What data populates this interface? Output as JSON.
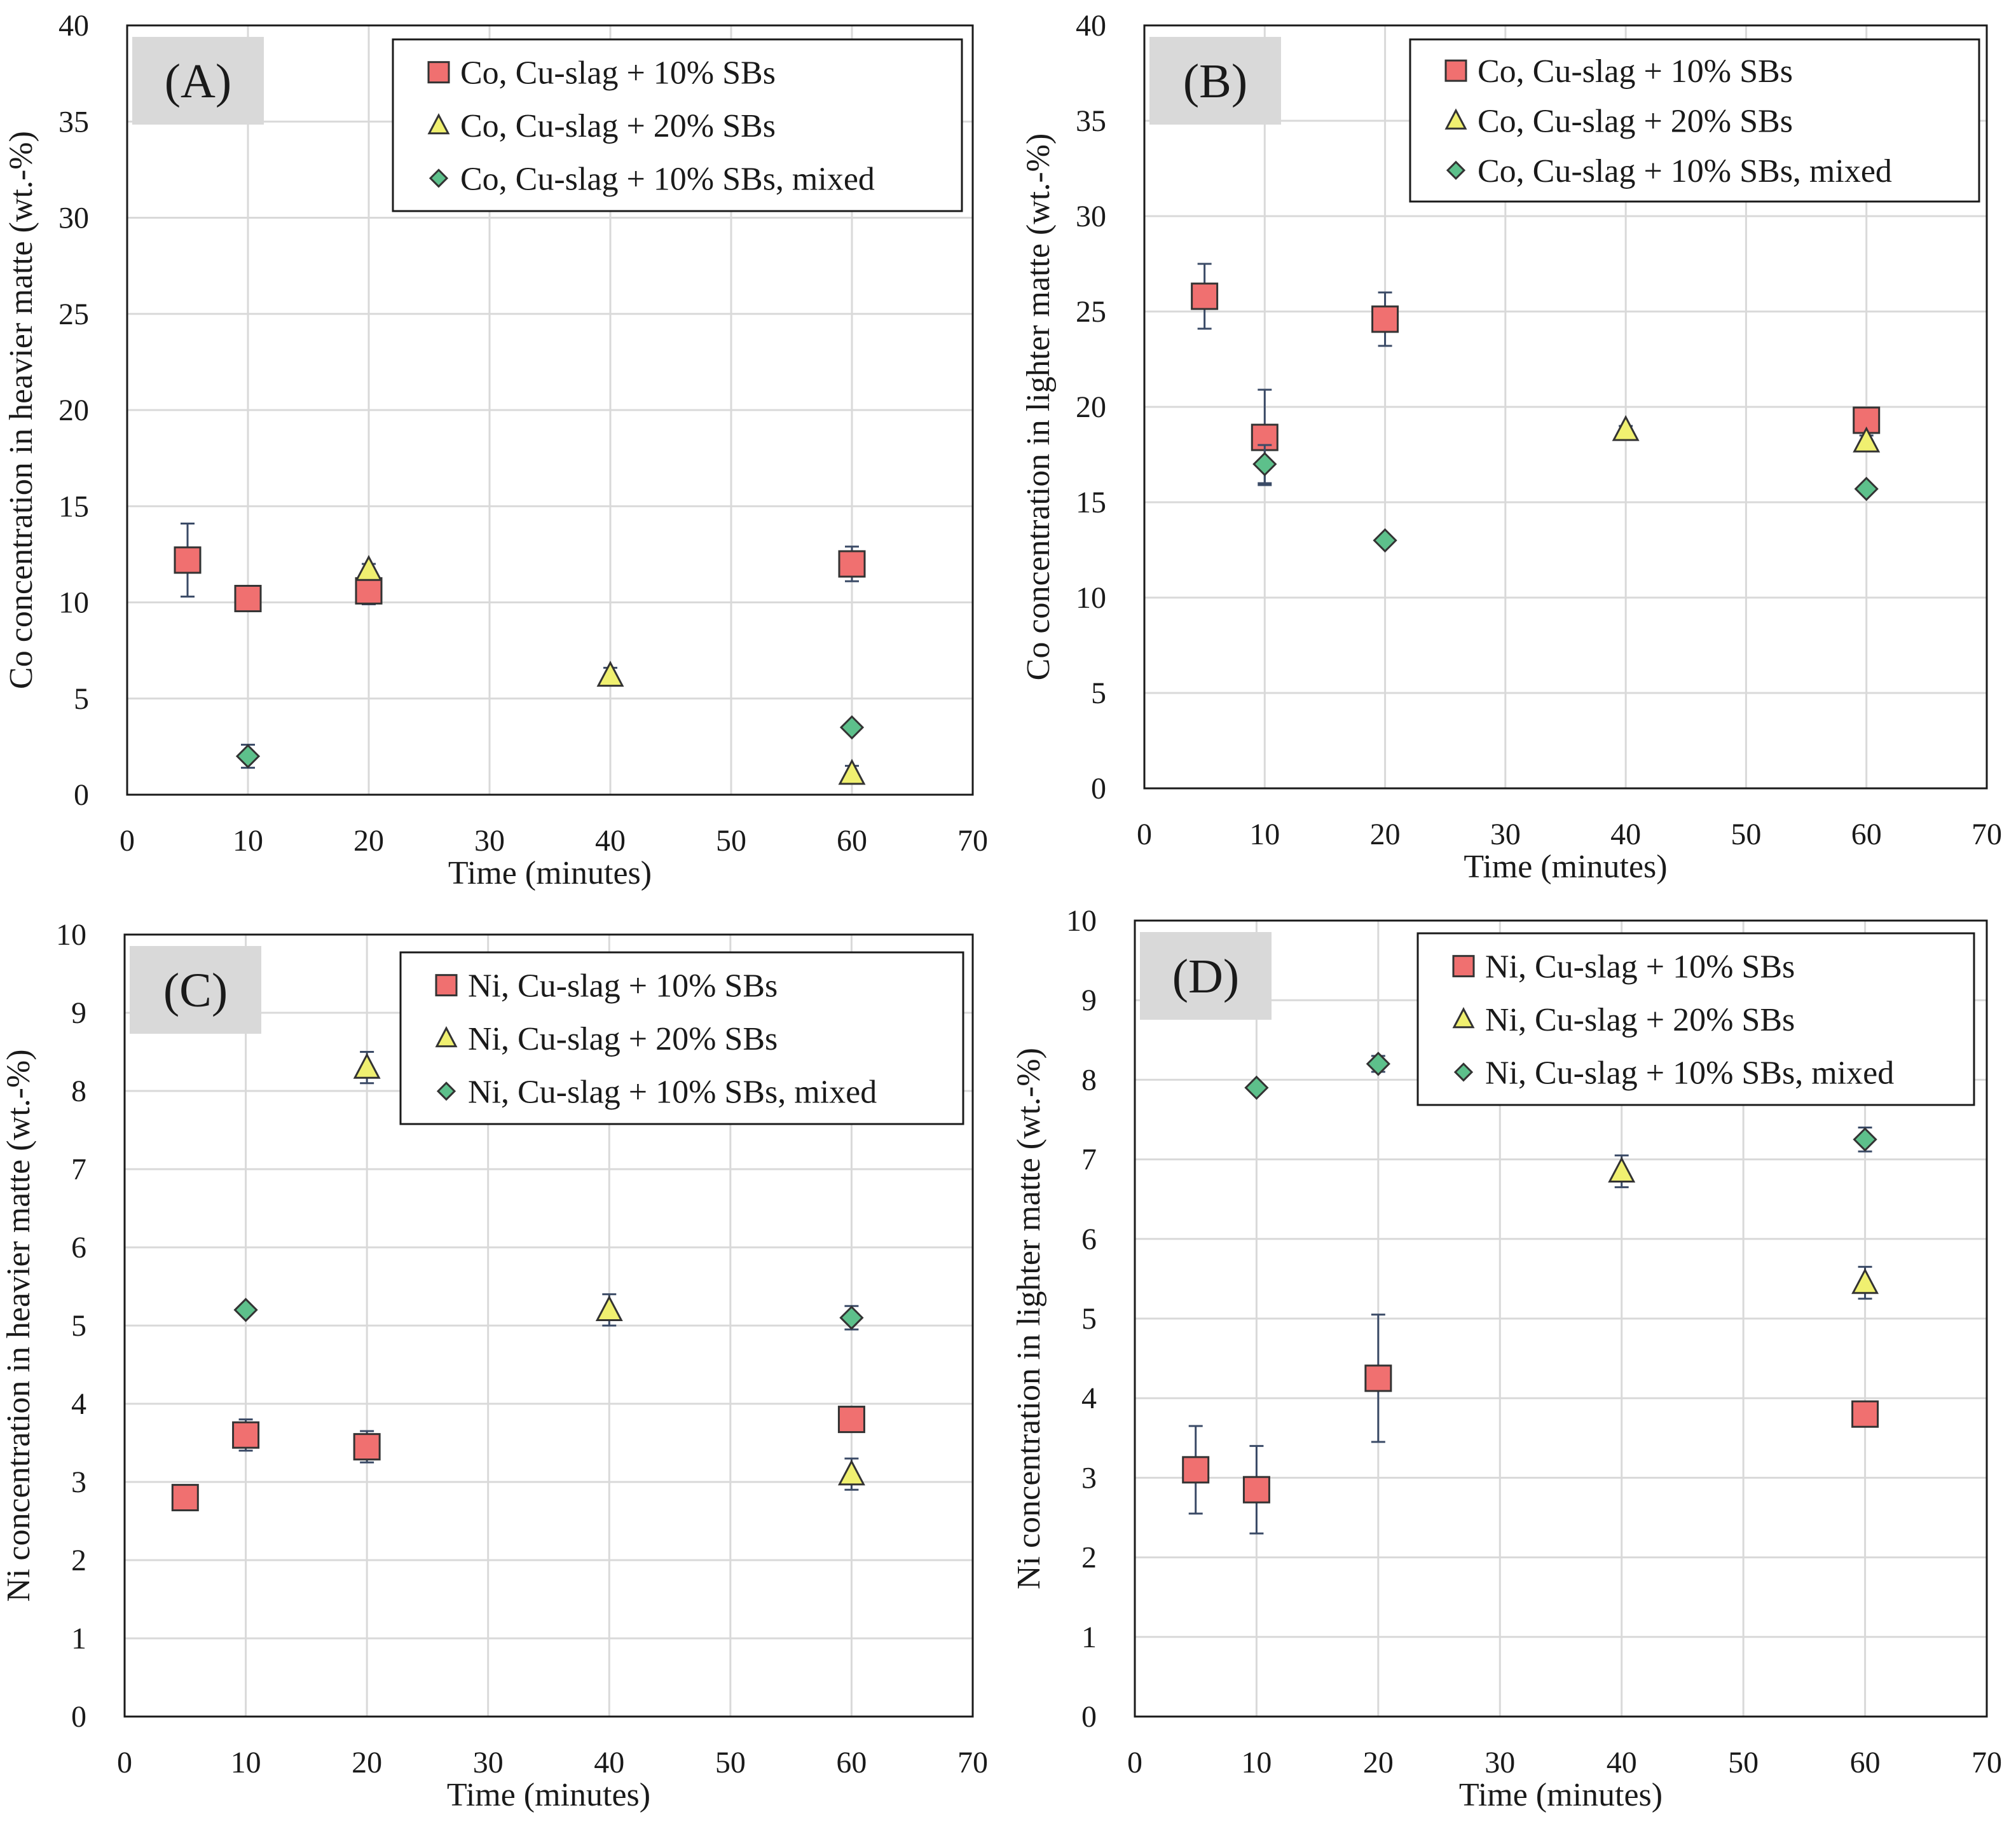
{
  "chart_data": [
    {
      "type": "scatter",
      "panel_label": "(A)",
      "xlabel": "Time (minutes)",
      "ylabel": "Co concentration in heavier matte (wt.-%)",
      "xlim": [
        0,
        70
      ],
      "ylim": [
        0,
        40
      ],
      "xticks": [
        "0",
        "10",
        "20",
        "30",
        "40",
        "50",
        "60",
        "70"
      ],
      "yticks": [
        "0",
        "5",
        "10",
        "15",
        "20",
        "25",
        "30",
        "35",
        "40"
      ],
      "grid": true,
      "legend_position": "top-right",
      "series": [
        {
          "name": "Co, Cu-slag + 10% SBs",
          "marker": "square",
          "color": "#f07070",
          "points": [
            {
              "x": 5,
              "y": 12.2,
              "err": 1.9
            },
            {
              "x": 10,
              "y": 10.2,
              "err": 0.6
            },
            {
              "x": 20,
              "y": 10.6,
              "err": 0.7
            },
            {
              "x": 60,
              "y": 12.0,
              "err": 0.9
            }
          ]
        },
        {
          "name": "Co, Cu-slag + 20% SBs",
          "marker": "triangle",
          "color": "#f0f070",
          "points": [
            {
              "x": 20,
              "y": 11.7,
              "err": 0.3
            },
            {
              "x": 40,
              "y": 6.2,
              "err": 0.4
            },
            {
              "x": 60,
              "y": 1.1,
              "err": 0.4
            }
          ]
        },
        {
          "name": "Co, Cu-slag + 10% SBs, mixed",
          "marker": "diamond",
          "color": "#5dc08b",
          "points": [
            {
              "x": 10,
              "y": 2.0,
              "err": 0.6
            },
            {
              "x": 60,
              "y": 3.5,
              "err": 0.2
            }
          ]
        }
      ]
    },
    {
      "type": "scatter",
      "panel_label": "(B)",
      "xlabel": "Time (minutes)",
      "ylabel": "Co concentration in lighter matte (wt.-%)",
      "xlim": [
        0,
        70
      ],
      "ylim": [
        0,
        40
      ],
      "xticks": [
        "0",
        "10",
        "20",
        "30",
        "40",
        "50",
        "60",
        "70"
      ],
      "yticks": [
        "0",
        "5",
        "10",
        "15",
        "20",
        "25",
        "30",
        "35",
        "40"
      ],
      "grid": true,
      "legend_position": "top-right",
      "series": [
        {
          "name": "Co, Cu-slag + 10% SBs",
          "marker": "square",
          "color": "#f07070",
          "points": [
            {
              "x": 5,
              "y": 25.8,
              "err": 1.7
            },
            {
              "x": 10,
              "y": 18.4,
              "err": 2.5
            },
            {
              "x": 20,
              "y": 24.6,
              "err": 1.4
            },
            {
              "x": 60,
              "y": 19.3,
              "err": 0.4
            }
          ]
        },
        {
          "name": "Co, Cu-slag + 20% SBs",
          "marker": "triangle",
          "color": "#f0f070",
          "points": [
            {
              "x": 40,
              "y": 18.8,
              "err": 0.2
            },
            {
              "x": 60,
              "y": 18.2,
              "err": 0.3
            }
          ]
        },
        {
          "name": "Co, Cu-slag + 10% SBs, mixed",
          "marker": "diamond",
          "color": "#5dc08b",
          "points": [
            {
              "x": 10,
              "y": 17.0,
              "err": 1.0
            },
            {
              "x": 20,
              "y": 13.0,
              "err": 0.2
            },
            {
              "x": 60,
              "y": 15.7,
              "err": 0.2
            }
          ]
        }
      ]
    },
    {
      "type": "scatter",
      "panel_label": "(C)",
      "xlabel": "Time (minutes)",
      "ylabel": "Ni concentration in heavier matte (wt.-%)",
      "xlim": [
        0,
        70
      ],
      "ylim": [
        0,
        10
      ],
      "xticks": [
        "0",
        "10",
        "20",
        "30",
        "40",
        "50",
        "60",
        "70"
      ],
      "yticks": [
        "0",
        "1",
        "2",
        "3",
        "4",
        "5",
        "6",
        "7",
        "8",
        "9",
        "10"
      ],
      "grid": true,
      "legend_position": "top-right",
      "series": [
        {
          "name": "Ni, Cu-slag + 10% SBs",
          "marker": "square",
          "color": "#f07070",
          "points": [
            {
              "x": 5,
              "y": 2.8,
              "err": 0.15
            },
            {
              "x": 10,
              "y": 3.6,
              "err": 0.2
            },
            {
              "x": 20,
              "y": 3.45,
              "err": 0.2
            },
            {
              "x": 60,
              "y": 3.8,
              "err": 0.1
            }
          ]
        },
        {
          "name": "Ni, Cu-slag + 20% SBs",
          "marker": "triangle",
          "color": "#f0f070",
          "points": [
            {
              "x": 20,
              "y": 8.3,
              "err": 0.2
            },
            {
              "x": 40,
              "y": 5.2,
              "err": 0.2
            },
            {
              "x": 60,
              "y": 3.1,
              "err": 0.2
            }
          ]
        },
        {
          "name": "Ni, Cu-slag + 10% SBs, mixed",
          "marker": "diamond",
          "color": "#5dc08b",
          "points": [
            {
              "x": 10,
              "y": 5.2,
              "err": 0.05
            },
            {
              "x": 60,
              "y": 5.1,
              "err": 0.15
            }
          ]
        }
      ]
    },
    {
      "type": "scatter",
      "panel_label": "(D)",
      "xlabel": "Time (minutes)",
      "ylabel": "Ni concentration in lighter matte (wt.-%)",
      "xlim": [
        0,
        70
      ],
      "ylim": [
        0,
        10
      ],
      "xticks": [
        "0",
        "10",
        "20",
        "30",
        "40",
        "50",
        "60",
        "70"
      ],
      "yticks": [
        "0",
        "1",
        "2",
        "3",
        "4",
        "5",
        "6",
        "7",
        "8",
        "9",
        "10"
      ],
      "grid": true,
      "legend_position": "top-right",
      "series": [
        {
          "name": "Ni, Cu-slag + 10% SBs",
          "marker": "square",
          "color": "#f07070",
          "points": [
            {
              "x": 5,
              "y": 3.1,
              "err": 0.55
            },
            {
              "x": 10,
              "y": 2.85,
              "err": 0.55
            },
            {
              "x": 20,
              "y": 4.25,
              "err": 0.8
            },
            {
              "x": 60,
              "y": 3.8,
              "err": 0.1
            }
          ]
        },
        {
          "name": "Ni, Cu-slag + 20% SBs",
          "marker": "triangle",
          "color": "#f0f070",
          "points": [
            {
              "x": 40,
              "y": 6.85,
              "err": 0.2
            },
            {
              "x": 60,
              "y": 5.45,
              "err": 0.2
            }
          ]
        },
        {
          "name": "Ni, Cu-slag + 10% SBs, mixed",
          "marker": "diamond",
          "color": "#5dc08b",
          "points": [
            {
              "x": 10,
              "y": 7.9,
              "err": 0.05
            },
            {
              "x": 20,
              "y": 8.2,
              "err": 0.1
            },
            {
              "x": 60,
              "y": 7.25,
              "err": 0.15
            }
          ]
        }
      ]
    }
  ]
}
